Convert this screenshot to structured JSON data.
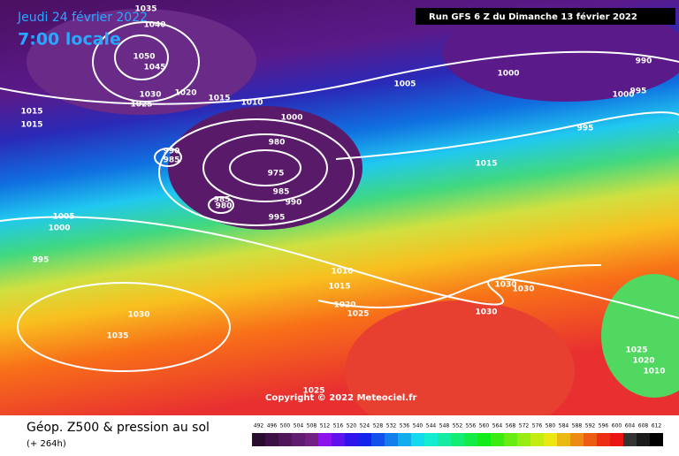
{
  "header": {
    "date": "Jeudi 24 février 2022",
    "time": "7:00 locale",
    "run": "Run GFS 6 Z du Dimanche 13 février 2022"
  },
  "copyright": "Copyright © 2022 Meteociel.fr",
  "footer": {
    "title": "Géop. Z500 & pression au sol",
    "lead": "(+ 264h)"
  },
  "colorbar": {
    "labels": [
      492,
      496,
      500,
      504,
      508,
      512,
      516,
      520,
      524,
      528,
      532,
      536,
      540,
      544,
      548,
      552,
      556,
      560,
      564,
      568,
      572,
      576,
      580,
      584,
      588,
      592,
      596,
      600,
      604,
      608,
      612
    ]
  },
  "isobars": {
    "labels": [
      1035,
      1040,
      1050,
      1045,
      1030,
      1025,
      1020,
      1015,
      1010,
      1015,
      1015,
      1005,
      1000,
      1000,
      990,
      995,
      1000,
      995,
      990,
      985,
      980,
      975,
      985,
      990,
      995,
      985,
      980,
      1015,
      1005,
      1000,
      995,
      1010,
      1015,
      1020,
      1025,
      1030,
      1030,
      1030,
      1030,
      1035,
      1025,
      1025,
      1020,
      1010
    ]
  }
}
